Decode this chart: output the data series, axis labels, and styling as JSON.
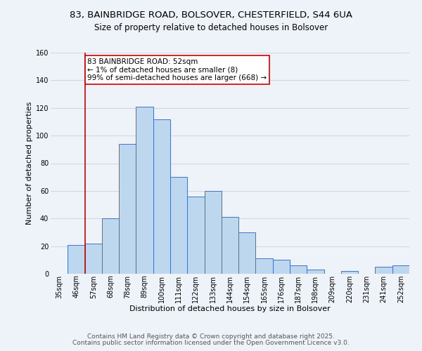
{
  "title": "83, BAINBRIDGE ROAD, BOLSOVER, CHESTERFIELD, S44 6UA",
  "subtitle": "Size of property relative to detached houses in Bolsover",
  "xlabel": "Distribution of detached houses by size in Bolsover",
  "ylabel": "Number of detached properties",
  "bin_labels": [
    "35sqm",
    "46sqm",
    "57sqm",
    "68sqm",
    "78sqm",
    "89sqm",
    "100sqm",
    "111sqm",
    "122sqm",
    "133sqm",
    "144sqm",
    "154sqm",
    "165sqm",
    "176sqm",
    "187sqm",
    "198sqm",
    "209sqm",
    "220sqm",
    "231sqm",
    "241sqm",
    "252sqm"
  ],
  "bar_values": [
    0,
    21,
    22,
    40,
    94,
    121,
    112,
    70,
    56,
    60,
    41,
    30,
    11,
    10,
    6,
    3,
    0,
    2,
    0,
    5,
    6
  ],
  "bar_color": "#bdd7ee",
  "bar_edge_color": "#4472c4",
  "grid_color": "#d0d8e4",
  "background_color": "#eef3f9",
  "vline_x_index": 1,
  "vline_color": "#cc0000",
  "annotation_text": "83 BAINBRIDGE ROAD: 52sqm\n← 1% of detached houses are smaller (8)\n99% of semi-detached houses are larger (668) →",
  "annotation_box_color": "#ffffff",
  "annotation_box_edge": "#cc0000",
  "footer_line1": "Contains HM Land Registry data © Crown copyright and database right 2025.",
  "footer_line2": "Contains public sector information licensed under the Open Government Licence v3.0.",
  "ylim": [
    0,
    160
  ],
  "yticks": [
    0,
    20,
    40,
    60,
    80,
    100,
    120,
    140,
    160
  ],
  "title_fontsize": 9.5,
  "subtitle_fontsize": 8.5,
  "axis_label_fontsize": 8,
  "tick_fontsize": 7,
  "annotation_fontsize": 7.5,
  "footer_fontsize": 6.5
}
